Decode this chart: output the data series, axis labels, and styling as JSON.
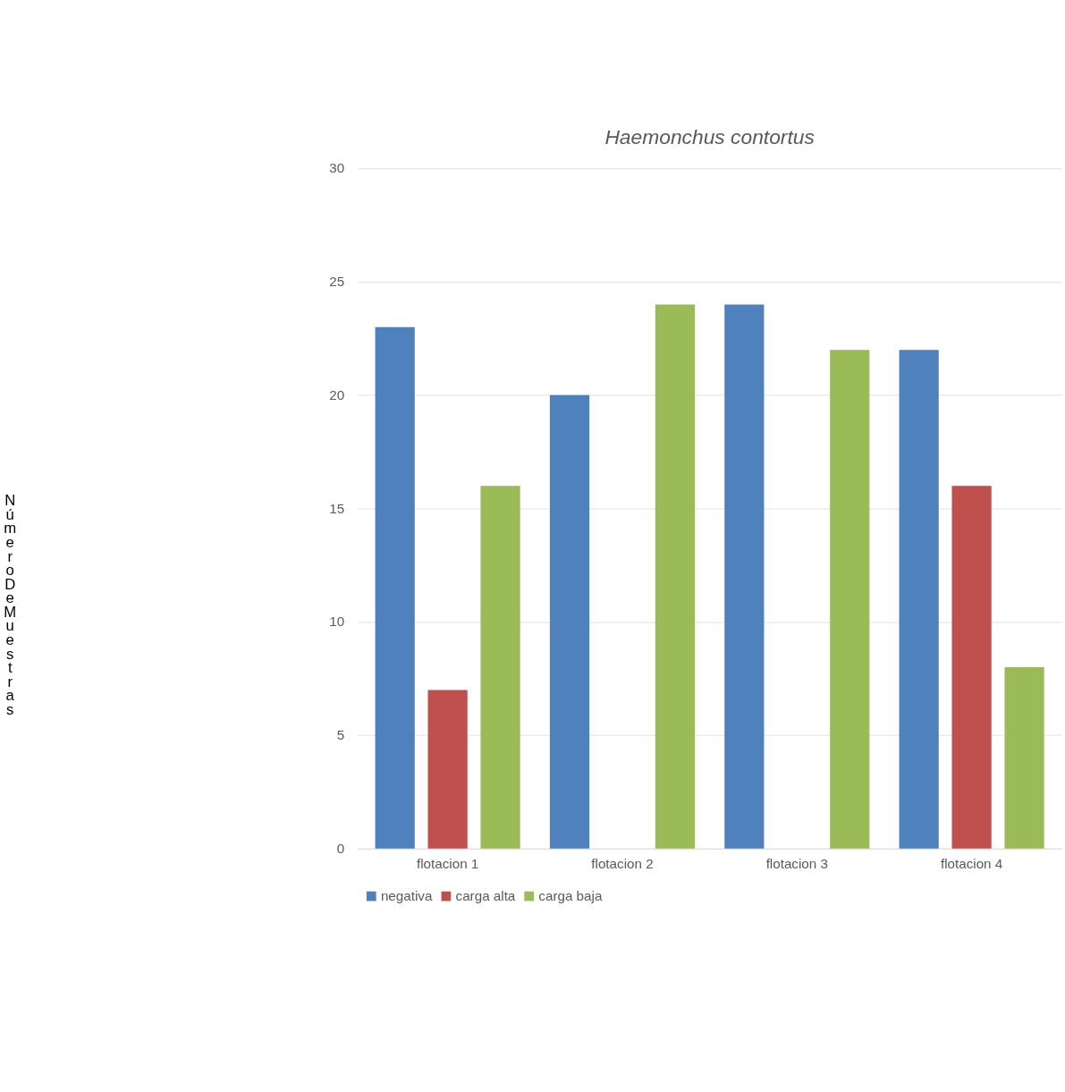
{
  "chart_data": {
    "type": "bar",
    "title": "Haemonchus contortus",
    "ylabel": "Número De Muestras",
    "categories": [
      "flotacion 1",
      "flotacion 2",
      "flotacion 3",
      "flotacion 4"
    ],
    "series": [
      {
        "name": "negativa",
        "color": "#4f81bd",
        "values": [
          23,
          20,
          24,
          22
        ]
      },
      {
        "name": "carga alta",
        "color": "#c0504d",
        "values": [
          7,
          0,
          0,
          16
        ]
      },
      {
        "name": "carga baja",
        "color": "#9bbb59",
        "values": [
          16,
          24,
          22,
          8
        ]
      }
    ],
    "ylim": [
      0,
      30
    ],
    "yticks": [
      0,
      5,
      10,
      15,
      20,
      25,
      30
    ],
    "grid": "y",
    "legend": "bottom"
  }
}
